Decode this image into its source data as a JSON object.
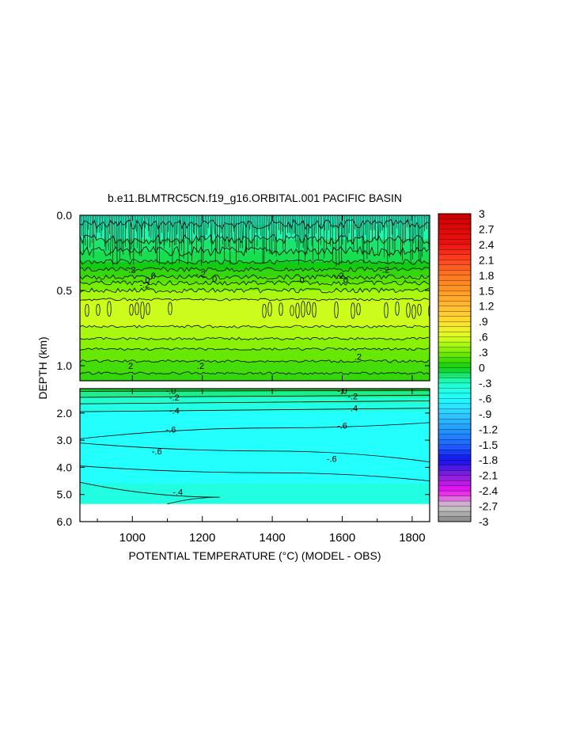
{
  "chart_data": {
    "type": "heatmap",
    "title": "b.e11.BLMTRC5CN.f19_g16.ORBITAL.001 PACIFIC BASIN",
    "xlabel": "POTENTIAL TEMPERATURE (°C) (MODEL - OBS)",
    "ylabel": "DEPTH (km)",
    "xlim": [
      850,
      1850
    ],
    "x_ticks": [
      1000,
      1200,
      1400,
      1600,
      1800
    ],
    "x_tick_labels": [
      "1000",
      "1200",
      "1400",
      "1600",
      "1800"
    ],
    "upper_panel": {
      "ylim": [
        0.0,
        1.1
      ],
      "y_ticks": [
        0.0,
        0.5,
        1.0
      ],
      "y_tick_labels": [
        "0.0",
        "0.5",
        "1.0"
      ],
      "bands": [
        {
          "depth_top": 0.0,
          "depth_bottom": 0.06,
          "value": -0.3
        },
        {
          "depth_top": 0.06,
          "depth_bottom": 0.16,
          "value": -0.25
        },
        {
          "depth_top": 0.16,
          "depth_bottom": 0.24,
          "value": -0.15
        },
        {
          "depth_top": 0.24,
          "depth_bottom": 0.31,
          "value": -0.1
        },
        {
          "depth_top": 0.31,
          "depth_bottom": 0.36,
          "value": 0.0
        },
        {
          "depth_top": 0.36,
          "depth_bottom": 0.41,
          "value": 0.1
        },
        {
          "depth_top": 0.41,
          "depth_bottom": 0.45,
          "value": 0.2
        },
        {
          "depth_top": 0.45,
          "depth_bottom": 0.5,
          "value": 0.3
        },
        {
          "depth_top": 0.5,
          "depth_bottom": 0.56,
          "value": 0.45
        },
        {
          "depth_top": 0.56,
          "depth_bottom": 0.74,
          "value": 0.55
        },
        {
          "depth_top": 0.74,
          "depth_bottom": 0.82,
          "value": 0.45
        },
        {
          "depth_top": 0.82,
          "depth_bottom": 0.89,
          "value": 0.35
        },
        {
          "depth_top": 0.89,
          "depth_bottom": 0.97,
          "value": 0.25
        },
        {
          "depth_top": 0.97,
          "depth_bottom": 1.05,
          "value": 0.15
        },
        {
          "depth_top": 1.05,
          "depth_bottom": 1.1,
          "value": 0.1
        }
      ],
      "contour_labels": [
        {
          "x": 995,
          "depth": 0.36,
          "text": "-.2"
        },
        {
          "x": 1035,
          "depth": 0.46,
          "text": "-.2"
        },
        {
          "x": 1040,
          "depth": 0.43,
          "text": ".0"
        },
        {
          "x": 1060,
          "depth": 0.4,
          "text": "0"
        },
        {
          "x": 1195,
          "depth": 0.39,
          "text": "-.2"
        },
        {
          "x": 1235,
          "depth": 0.42,
          "text": "0"
        },
        {
          "x": 1485,
          "depth": 0.43,
          "text": "0"
        },
        {
          "x": 1590,
          "depth": 0.4,
          "text": "-.2"
        },
        {
          "x": 1610,
          "depth": 0.43,
          "text": "0"
        },
        {
          "x": 1720,
          "depth": 0.36,
          "text": "-.2"
        },
        {
          "x": 995,
          "depth": 1.0,
          "text": "2"
        },
        {
          "x": 1195,
          "depth": 1.0,
          "text": ".2"
        },
        {
          "x": 1645,
          "depth": 0.94,
          "text": ".2"
        }
      ]
    },
    "lower_panel": {
      "ylim": [
        1.1,
        6.0
      ],
      "y_ticks": [
        2.0,
        3.0,
        4.0,
        5.0,
        6.0
      ],
      "y_tick_labels": [
        "2.0",
        "3.0",
        "4.0",
        "5.0",
        "6.0"
      ],
      "data_bottom_depth": 5.35,
      "contours": [
        {
          "level": -0.1,
          "depth_at_x": [
            [
              850,
              1.2
            ],
            [
              1850,
              1.16
            ]
          ]
        },
        {
          "level": -0.2,
          "depth_at_x": [
            [
              850,
              1.42
            ],
            [
              1850,
              1.34
            ]
          ]
        },
        {
          "level": -0.3,
          "depth_at_x": [
            [
              850,
              1.66
            ],
            [
              1850,
              1.55
            ]
          ]
        },
        {
          "level": -0.4,
          "depth_at_x": [
            [
              850,
              1.95
            ],
            [
              1850,
              1.82
            ]
          ]
        },
        {
          "level": -0.5,
          "depth_at_x": [
            [
              850,
              2.95
            ],
            [
              1400,
              2.55
            ],
            [
              1850,
              2.35
            ]
          ]
        },
        {
          "level": -0.6,
          "depth_at_x": [
            [
              850,
              3.1
            ],
            [
              1400,
              3.4
            ],
            [
              1850,
              3.8
            ]
          ]
        },
        {
          "level": -0.5,
          "depth_at_x": [
            [
              850,
              3.95
            ],
            [
              1400,
              4.2
            ],
            [
              1850,
              4.5
            ]
          ]
        },
        {
          "level": -0.4,
          "depth_at_x": [
            [
              850,
              4.55
            ],
            [
              1250,
              5.1
            ],
            [
              1100,
              5.35
            ]
          ]
        }
      ],
      "contour_labels": [
        {
          "x": 1110,
          "depth": 1.18,
          "text": "-.0"
        },
        {
          "x": 1600,
          "depth": 1.17,
          "text": "-.0"
        },
        {
          "x": 1120,
          "depth": 1.42,
          "text": "-.2"
        },
        {
          "x": 1630,
          "depth": 1.38,
          "text": "-.2"
        },
        {
          "x": 1120,
          "depth": 1.9,
          "text": "-.4"
        },
        {
          "x": 1630,
          "depth": 1.82,
          "text": "-.4"
        },
        {
          "x": 1110,
          "depth": 2.6,
          "text": "-.6"
        },
        {
          "x": 1600,
          "depth": 2.45,
          "text": "-.6"
        },
        {
          "x": 1070,
          "depth": 3.4,
          "text": "-.6"
        },
        {
          "x": 1570,
          "depth": 3.68,
          "text": "-.6"
        },
        {
          "x": 1130,
          "depth": 4.9,
          "text": "-.4"
        }
      ]
    },
    "colorbar": {
      "min": -3,
      "max": 3,
      "labels": [
        "3",
        "2.7",
        "2.4",
        "2.1",
        "1.8",
        "1.5",
        "1.2",
        ".9",
        ".6",
        ".3",
        "0",
        "-.3",
        "-.6",
        "-.9",
        "-1.2",
        "-1.5",
        "-1.8",
        "-2.1",
        "-2.4",
        "-2.7",
        "-3"
      ],
      "color_stops": [
        {
          "value": 3.0,
          "color": "#cc0000"
        },
        {
          "value": 2.4,
          "color": "#ee1111"
        },
        {
          "value": 2.1,
          "color": "#ff4422"
        },
        {
          "value": 1.8,
          "color": "#ff7722"
        },
        {
          "value": 1.5,
          "color": "#ff9922"
        },
        {
          "value": 1.2,
          "color": "#ffbb33"
        },
        {
          "value": 0.9,
          "color": "#ffdd33"
        },
        {
          "value": 0.6,
          "color": "#ddff22"
        },
        {
          "value": 0.3,
          "color": "#77ee00"
        },
        {
          "value": 0.0,
          "color": "#11cc11"
        },
        {
          "value": -0.3,
          "color": "#22ffcc"
        },
        {
          "value": -0.6,
          "color": "#22ffff"
        },
        {
          "value": -0.9,
          "color": "#33ccff"
        },
        {
          "value": -1.2,
          "color": "#2299ff"
        },
        {
          "value": -1.5,
          "color": "#2266ff"
        },
        {
          "value": -1.8,
          "color": "#1111ee"
        },
        {
          "value": -2.1,
          "color": "#8822dd"
        },
        {
          "value": -2.4,
          "color": "#ee11ee"
        },
        {
          "value": -2.7,
          "color": "#cccccc"
        },
        {
          "value": -3.0,
          "color": "#888888"
        }
      ]
    }
  }
}
